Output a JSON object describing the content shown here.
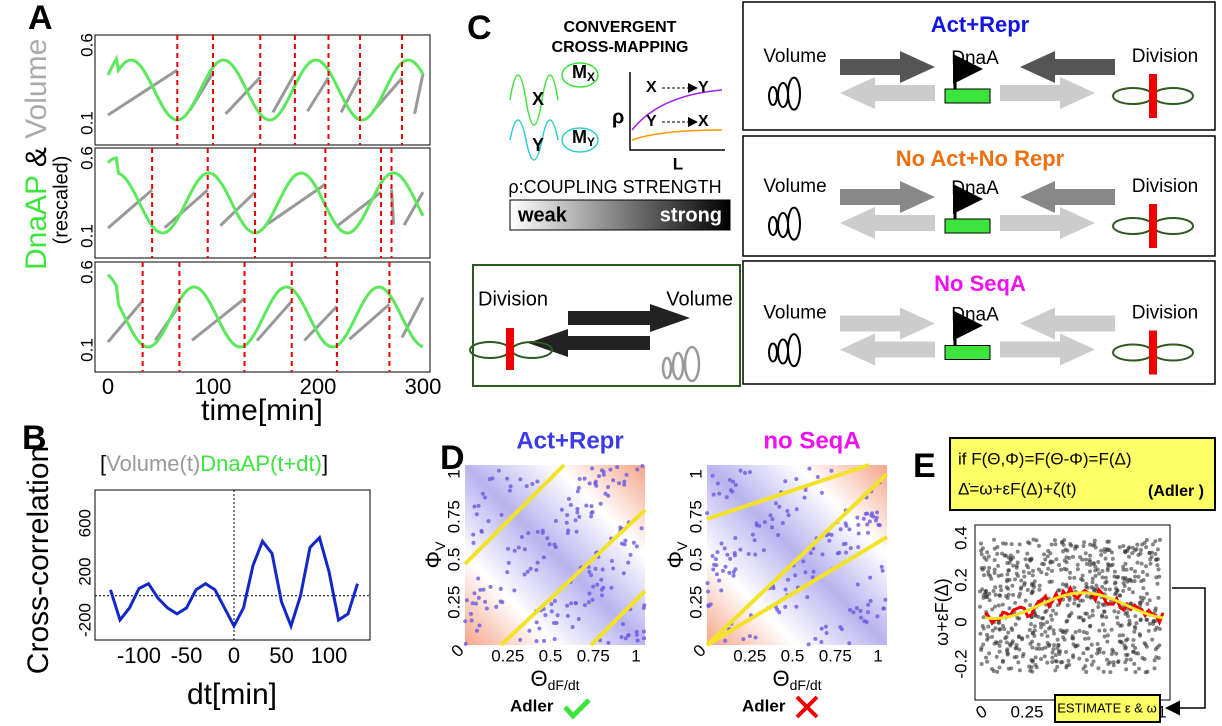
{
  "panel_a": {
    "label": "A",
    "y_label_green": "DnaAP",
    "y_label_amp": " & ",
    "y_label_grey": "Volume",
    "y_sublabel": "(rescaled)",
    "yticks": [
      "0.6",
      "0.1"
    ],
    "xticks": [
      "0",
      "100",
      "200",
      "300"
    ],
    "x_label": "time[min]"
  },
  "panel_b": {
    "label": "B",
    "y_label": "Cross-correlation",
    "legend_open": "[",
    "legend_grey": "Volume(t)",
    "legend_green": "DnaAP(t+dt)",
    "legend_close": "]",
    "yticks": [
      600,
      200,
      -200
    ],
    "xticks": [
      -100,
      -50,
      0,
      50,
      100
    ],
    "x_label": "dt[min]",
    "curve": {
      "x": [
        -130,
        -120,
        -110,
        -100,
        -90,
        -80,
        -70,
        -60,
        -50,
        -40,
        -30,
        -20,
        -10,
        0,
        10,
        20,
        30,
        40,
        50,
        60,
        70,
        80,
        90,
        100,
        110,
        120,
        130
      ],
      "values": [
        50,
        -200,
        -100,
        60,
        100,
        -20,
        -100,
        -150,
        -100,
        50,
        100,
        50,
        -100,
        -250,
        -100,
        250,
        450,
        350,
        -50,
        -250,
        0,
        400,
        480,
        200,
        -200,
        -150,
        100
      ]
    }
  },
  "panel_c": {
    "label": "C",
    "title_1": "CONVERGENT",
    "title_2": "CROSS-MAPPING",
    "x": "X",
    "y": "Y",
    "m": "M",
    "mx": "X",
    "my": "Y",
    "rho": "ρ",
    "xy_1": "X",
    "xy_2": "Y",
    "yx_1": "Y",
    "yx_2": "X",
    "l": "L",
    "coupling": "ρ:COUPLING STRENGTH",
    "weak": "weak",
    "strong": "strong",
    "division": "Division",
    "volume": "Volume",
    "models": [
      {
        "title": "Act+Repr",
        "volume": "Volume",
        "dnaa": "DnaA",
        "division": "Division"
      },
      {
        "title": "No Act+No Repr",
        "volume": "Volume",
        "dnaa": "DnaA",
        "division": "Division"
      },
      {
        "title": "No SeqA",
        "volume": "Volume",
        "dnaa": "DnaA",
        "division": "Division"
      }
    ]
  },
  "panel_d": {
    "label": "D",
    "plots": [
      {
        "title": "Act+Repr",
        "verdict": "Adler"
      },
      {
        "title": "no SeqA",
        "verdict": "Adler"
      }
    ],
    "y_label": "Φ",
    "y_sub": "V",
    "x_label": "Θ",
    "x_sub": "dF/dt",
    "ticks": [
      "0.25",
      "0.5",
      "0.75",
      "1"
    ],
    "origin": "0",
    "x_ticks": [
      "0.25",
      "0.5",
      "0.75",
      "1"
    ]
  },
  "panel_e": {
    "label": "E",
    "eq_1": "if F(Θ,Φ)=F(Θ-Φ)=F(Δ)",
    "eq_2": "Δ̇=ω+εF(Δ)+ζ(t)",
    "eq_tag": "(Adler )",
    "y_label": "ω+εF(Δ)",
    "yticks": [
      "0.4",
      "0.2",
      "0",
      "-0.2"
    ],
    "xticks": [
      "0",
      "0.25",
      "0.5",
      "0.75",
      "1"
    ],
    "x_label": "Δ",
    "estimate": "ESTIMATE ε & ω"
  }
}
